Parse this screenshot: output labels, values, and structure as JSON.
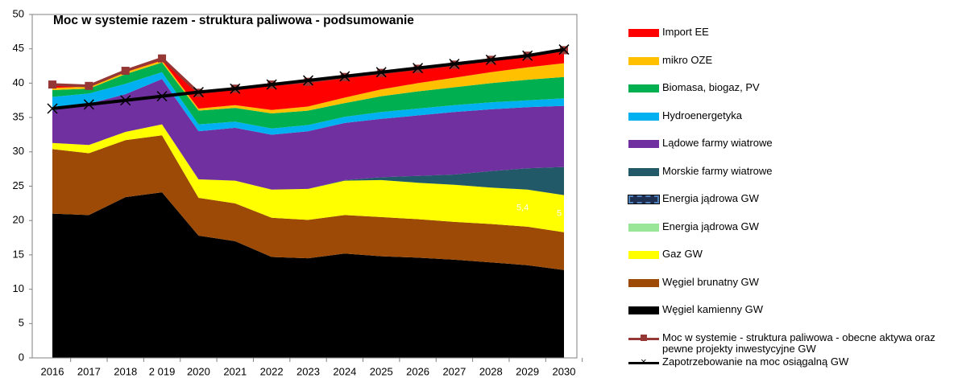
{
  "chart_data": {
    "type": "stacked_area",
    "title": "Moc w systemie razem - struktura paliwowa - podsumowanie",
    "categories": [
      "2016",
      "2017",
      "2018",
      "2 019",
      "2020",
      "2021",
      "2022",
      "2023",
      "2024",
      "2025",
      "2026",
      "2027",
      "2028",
      "2029",
      "2030"
    ],
    "ylim": [
      0,
      50
    ],
    "yticks": [
      0,
      5,
      10,
      15,
      20,
      25,
      30,
      35,
      40,
      45,
      50
    ],
    "grid": false,
    "series": [
      {
        "name": "Węgiel kamienny GW",
        "color": "#000000",
        "values": [
          21.0,
          20.8,
          23.4,
          24.1,
          17.8,
          17.0,
          14.7,
          14.5,
          15.2,
          14.8,
          14.6,
          14.3,
          13.9,
          13.5,
          12.8
        ]
      },
      {
        "name": "Węgiel brunatny GW",
        "color": "#9c4a06",
        "values": [
          9.4,
          9.0,
          8.3,
          8.3,
          5.5,
          5.5,
          5.7,
          5.6,
          5.6,
          5.7,
          5.6,
          5.5,
          5.6,
          5.6,
          5.5
        ]
      },
      {
        "name": "Gaz GW",
        "color": "#ffff00",
        "values": [
          0.9,
          1.2,
          1.2,
          1.6,
          2.7,
          3.3,
          4.1,
          4.5,
          5.0,
          5.4,
          5.3,
          5.4,
          5.3,
          5.4,
          5.4
        ],
        "value_labels": [
          null,
          null,
          null,
          null,
          null,
          null,
          null,
          null,
          null,
          null,
          null,
          null,
          null,
          "5,4",
          "5"
        ]
      },
      {
        "name": "Energia jądrowa GW",
        "color": "#99e699",
        "values": [
          0,
          0,
          0,
          0,
          0,
          0,
          0,
          0,
          0,
          0,
          0,
          0,
          0,
          0,
          0
        ]
      },
      {
        "name": "Energia jądrowa GW",
        "color": "#4f81bd",
        "dashed": true,
        "values": [
          0,
          0,
          0,
          0,
          0,
          0,
          0,
          0,
          0,
          0,
          0,
          0,
          0,
          0,
          0
        ]
      },
      {
        "name": "Morskie farmy wiatrowe",
        "color": "#215968",
        "values": [
          0,
          0,
          0,
          0,
          0,
          0,
          0,
          0,
          0.1,
          0.4,
          1.0,
          1.5,
          2.4,
          3.1,
          4.1
        ]
      },
      {
        "name": "Lądowe farmy wiatrowe",
        "color": "#7030a0",
        "values": [
          4.7,
          6.0,
          5.5,
          6.6,
          7.0,
          7.7,
          8.0,
          8.4,
          8.3,
          8.5,
          8.8,
          9.1,
          9.0,
          8.9,
          8.9
        ]
      },
      {
        "name": "Hydroenergetyka",
        "color": "#00b0f0",
        "values": [
          2.0,
          1.5,
          1.5,
          1.0,
          1.0,
          0.9,
          0.9,
          0.9,
          0.9,
          1.0,
          1.0,
          1.0,
          1.0,
          1.0,
          1.1
        ]
      },
      {
        "name": "Biomasa, biogaz, PV",
        "color": "#00b050",
        "values": [
          1.0,
          0.7,
          1.4,
          1.4,
          2.0,
          2.0,
          2.2,
          2.1,
          2.0,
          2.3,
          2.5,
          2.6,
          2.8,
          3.0,
          3.1
        ]
      },
      {
        "name": "mikro OZE",
        "color": "#ffc000",
        "values": [
          0.3,
          0.3,
          0.3,
          0.3,
          0.3,
          0.4,
          0.5,
          0.6,
          0.8,
          1.0,
          1.2,
          1.4,
          1.6,
          1.8,
          2.0
        ]
      },
      {
        "name": "Import EE",
        "color": "#ff0000",
        "values": [
          0.5,
          0.1,
          0.2,
          0.3,
          2.3,
          2.4,
          3.7,
          3.6,
          3.0,
          2.4,
          2.1,
          1.9,
          1.8,
          1.6,
          1.9
        ]
      }
    ],
    "lines": [
      {
        "name": "Moc w systemie - struktura paliwowa - obecne aktywa oraz pewne projekty inwestycyjne GW",
        "color": "#953735",
        "marker": "square",
        "values": [
          39.8,
          39.6,
          41.8,
          43.6,
          38.6,
          39.2,
          39.8,
          40.2,
          40.9,
          41.5,
          42.1,
          42.7,
          43.4,
          44.0,
          44.8
        ]
      },
      {
        "name": "Zapotrzebowanie na moc osiągalną GW",
        "color": "#000000",
        "marker": "x",
        "values": [
          36.3,
          36.9,
          37.5,
          38.1,
          38.7,
          39.2,
          39.8,
          40.4,
          41.0,
          41.6,
          42.2,
          42.8,
          43.4,
          44.0,
          44.9
        ]
      }
    ]
  }
}
